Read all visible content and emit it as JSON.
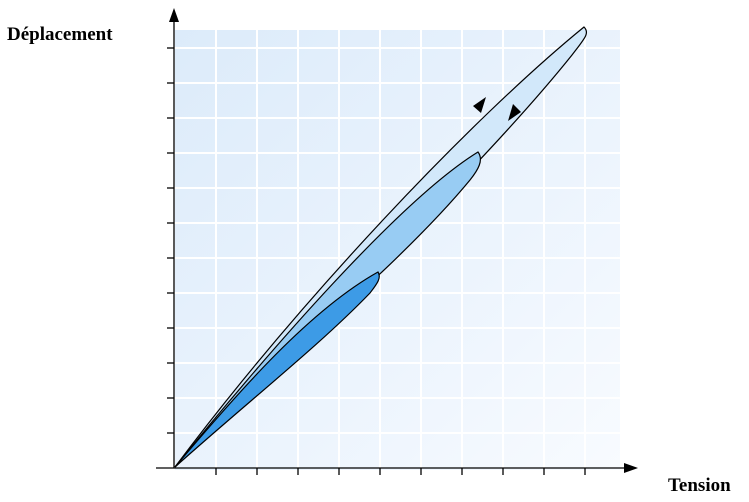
{
  "axes": {
    "y_label": "Déplacement",
    "x_label": "Tension"
  },
  "colors": {
    "background_grid": "#e8f2fc",
    "grid_line": "#ffffff",
    "axis": "#000000",
    "outer_loop_fill": "#d2e8fa",
    "middle_loop_fill": "#98ccf3",
    "inner_loop_fill": "#3d9be6",
    "loop_outline": "#000000"
  },
  "loops": [
    "outer-hysteresis-loop",
    "middle-hysteresis-loop",
    "inner-hysteresis-loop"
  ],
  "arrows": [
    "direction-arrow-upper",
    "direction-arrow-lower"
  ]
}
